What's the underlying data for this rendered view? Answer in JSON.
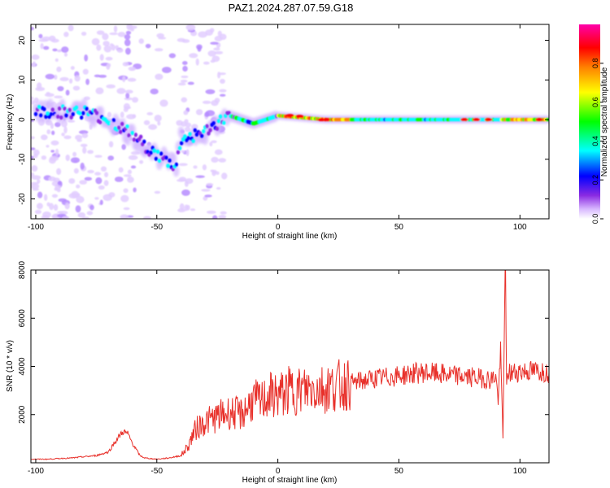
{
  "title": "PAZ1.2024.287.07.59.G18",
  "chart_data": [
    {
      "type": "heatmap",
      "title": "PAZ1.2024.287.07.59.G18",
      "xlabel": "Height of straight line (km)",
      "ylabel": "Frequency (Hz)",
      "xlim": [
        -102,
        112
      ],
      "ylim": [
        -25,
        24
      ],
      "xticks": [
        -100,
        -50,
        0,
        50,
        100
      ],
      "yticks": [
        -20,
        -10,
        0,
        10,
        20
      ],
      "colorbar": {
        "label": "Normalized spectral amplitude",
        "range": [
          0,
          1
        ],
        "ticks": [
          0.0,
          0.2,
          0.4,
          0.6,
          0.8
        ],
        "tick_labels": [
          "0.0",
          "0.2",
          "0.4",
          "0.6",
          "0.8"
        ],
        "colormap": [
          "#ffffff",
          "#d8b8ff",
          "#8a2be2",
          "#0000ff",
          "#00ffff",
          "#00ff00",
          "#ffff00",
          "#ff8000",
          "#ff0000",
          "#ff00aa"
        ]
      },
      "ridge": {
        "description_points": [
          {
            "x": -100,
            "y": 2
          },
          {
            "x": -80,
            "y": 2
          },
          {
            "x": -70,
            "y": 0
          },
          {
            "x": -60,
            "y": -4
          },
          {
            "x": -50,
            "y": -9
          },
          {
            "x": -42,
            "y": -12
          },
          {
            "x": -40,
            "y": -5
          },
          {
            "x": -30,
            "y": -3
          },
          {
            "x": -20,
            "y": 1
          },
          {
            "x": -10,
            "y": -1
          },
          {
            "x": 0,
            "y": 1
          },
          {
            "x": 10,
            "y": 0.5
          },
          {
            "x": 20,
            "y": 0
          },
          {
            "x": 50,
            "y": 0
          },
          {
            "x": 80,
            "y": 0
          },
          {
            "x": 92,
            "y": 0
          },
          {
            "x": 112,
            "y": 0
          }
        ]
      }
    },
    {
      "type": "line",
      "xlabel": "Height of straight line (km)",
      "ylabel": "SNR (10 * v/v)",
      "xlim": [
        -102,
        112
      ],
      "ylim": [
        0,
        8000
      ],
      "xticks": [
        -100,
        -50,
        0,
        50,
        100
      ],
      "yticks": [
        2000,
        4000,
        6000,
        8000
      ],
      "color": "#e8302a",
      "series": [
        {
          "x": [
            -102,
            -95,
            -90,
            -85,
            -80,
            -75,
            -70,
            -67,
            -64,
            -62,
            -60,
            -57,
            -55,
            -50,
            -45,
            -40,
            -37,
            -35,
            -33,
            -30,
            -25,
            -20,
            -15,
            -12,
            -10,
            -7,
            -5,
            -3,
            0,
            3,
            5,
            10,
            15,
            20,
            25,
            30,
            35,
            40,
            45,
            50,
            55,
            60,
            65,
            70,
            75,
            80,
            85,
            88,
            90,
            91,
            92,
            93,
            93.5,
            94,
            94.5,
            95,
            96,
            98,
            100,
            105,
            110,
            112
          ],
          "y": [
            150,
            150,
            180,
            200,
            250,
            300,
            450,
            900,
            1300,
            1200,
            800,
            300,
            200,
            150,
            200,
            300,
            700,
            1200,
            1500,
            1700,
            1900,
            2100,
            2000,
            2400,
            2600,
            2500,
            2700,
            2800,
            2800,
            2900,
            3000,
            3000,
            3100,
            3100,
            3200,
            3300,
            3400,
            3500,
            3550,
            3600,
            3700,
            3750,
            3700,
            3650,
            3600,
            3550,
            3500,
            3450,
            3600,
            2600,
            4500,
            1000,
            5500,
            8000,
            3000,
            3800,
            3700,
            3750,
            3800,
            3800,
            3800,
            3750
          ]
        }
      ]
    }
  ]
}
